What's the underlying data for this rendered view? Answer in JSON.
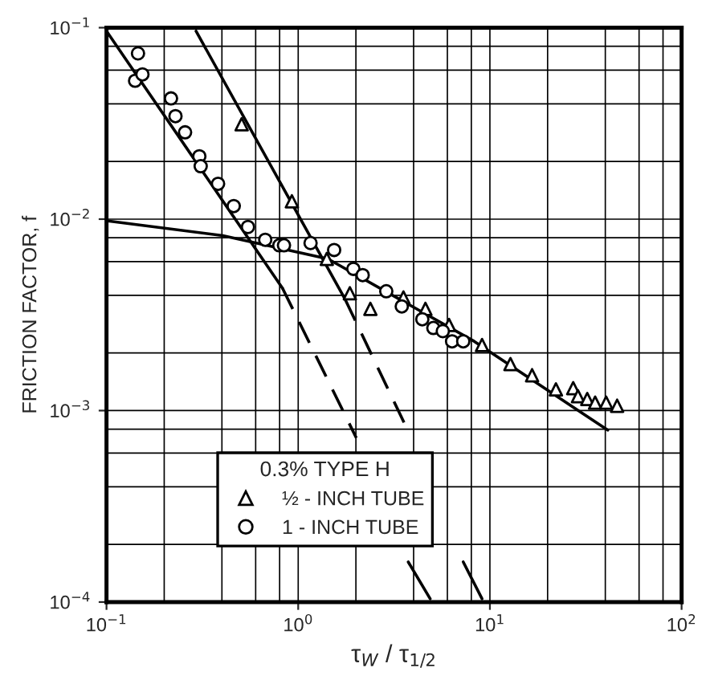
{
  "chart_data": {
    "type": "scatter",
    "xlabel": "τ$_{W}$ / τ$_{1/2}$",
    "ylabel": "FRICTION FACTOR, f",
    "legend_title": "0.3% TYPE H",
    "log": "xy",
    "grid": true,
    "legend": "bottom",
    "xlim": [
      0.1,
      100
    ],
    "ylim": [
      0.0001,
      0.1
    ],
    "xticks": [
      {
        "value": 0.1,
        "label": "10$^{−1}$"
      },
      {
        "value": 1,
        "label": "10$^{0}$"
      },
      {
        "value": 10,
        "label": "10$^{1}$"
      },
      {
        "value": 100,
        "label": "10$^{2}$"
      }
    ],
    "yticks": [
      {
        "value": 0.0001,
        "label": "10$^{−4}$"
      },
      {
        "value": 0.001,
        "label": "10$^{−3}$"
      },
      {
        "value": 0.01,
        "label": "10$^{−2}$"
      },
      {
        "value": 0.1,
        "label": "10$^{−1}$"
      }
    ],
    "series": [
      {
        "name": "½ - INCH TUBE",
        "marker": "triangle",
        "color": "#000000",
        "x": [
          0.507,
          0.927,
          1.41,
          1.86,
          2.38,
          3.54,
          4.61,
          6.12,
          9.1,
          12.8,
          16.6,
          22.1,
          27.2,
          28.8,
          32.2,
          35.4,
          40.4,
          46.1
        ],
        "values": [
          0.0313,
          0.0124,
          0.0062,
          0.0041,
          0.0034,
          0.0039,
          0.0034,
          0.0028,
          0.0022,
          0.00175,
          0.00153,
          0.00129,
          0.00131,
          0.00119,
          0.00115,
          0.0011,
          0.0011,
          0.00106
        ]
      },
      {
        "name": "1 - INCH TUBE",
        "marker": "circle",
        "color": "#000000",
        "x": [
          0.146,
          0.141,
          0.154,
          0.217,
          0.229,
          0.257,
          0.305,
          0.31,
          0.382,
          0.461,
          0.547,
          0.673,
          0.797,
          0.843,
          1.16,
          1.54,
          1.94,
          2.17,
          2.88,
          3.47,
          4.44,
          5.07,
          5.68,
          6.35,
          7.26
        ],
        "values": [
          0.0734,
          0.0528,
          0.057,
          0.0427,
          0.0345,
          0.0284,
          0.0213,
          0.0189,
          0.0153,
          0.0117,
          0.0091,
          0.0078,
          0.0073,
          0.0073,
          0.0075,
          0.0069,
          0.0055,
          0.0051,
          0.0042,
          0.0035,
          0.003,
          0.0027,
          0.0026,
          0.0023,
          0.0023
        ]
      },
      {
        "type": "line",
        "line_style": "solid",
        "color": "#000000",
        "x": [
          0.1,
          0.828
        ],
        "values": [
          0.096,
          0.00436
        ]
      },
      {
        "type": "line",
        "line_style": "dashed",
        "color": "#000000",
        "x": [
          0.828,
          2.01
        ],
        "values": [
          0.00436,
          0.00072
        ]
      },
      {
        "type": "line",
        "line_style": "solid",
        "color": "#000000",
        "x": [
          3.75,
          4.88
        ],
        "values": [
          0.000162,
          0.000104
        ]
      },
      {
        "type": "line",
        "line_style": "solid",
        "color": "#000000",
        "x": [
          0.293,
          1.76
        ],
        "values": [
          0.096,
          0.0038
        ]
      },
      {
        "type": "line",
        "line_style": "dashed",
        "color": "#000000",
        "x": [
          1.76,
          3.68
        ],
        "values": [
          0.0038,
          0.00081
        ]
      },
      {
        "type": "line",
        "line_style": "solid",
        "color": "#000000",
        "x": [
          7.26,
          9.1
        ],
        "values": [
          0.000162,
          0.000104
        ]
      },
      {
        "type": "line",
        "line_style": "solid",
        "color": "#000000",
        "x": [
          0.1,
          0.404,
          1.43,
          8.28,
          41.2
        ],
        "values": [
          0.0098,
          0.0082,
          0.0062,
          0.0023,
          0.00079
        ]
      }
    ]
  }
}
